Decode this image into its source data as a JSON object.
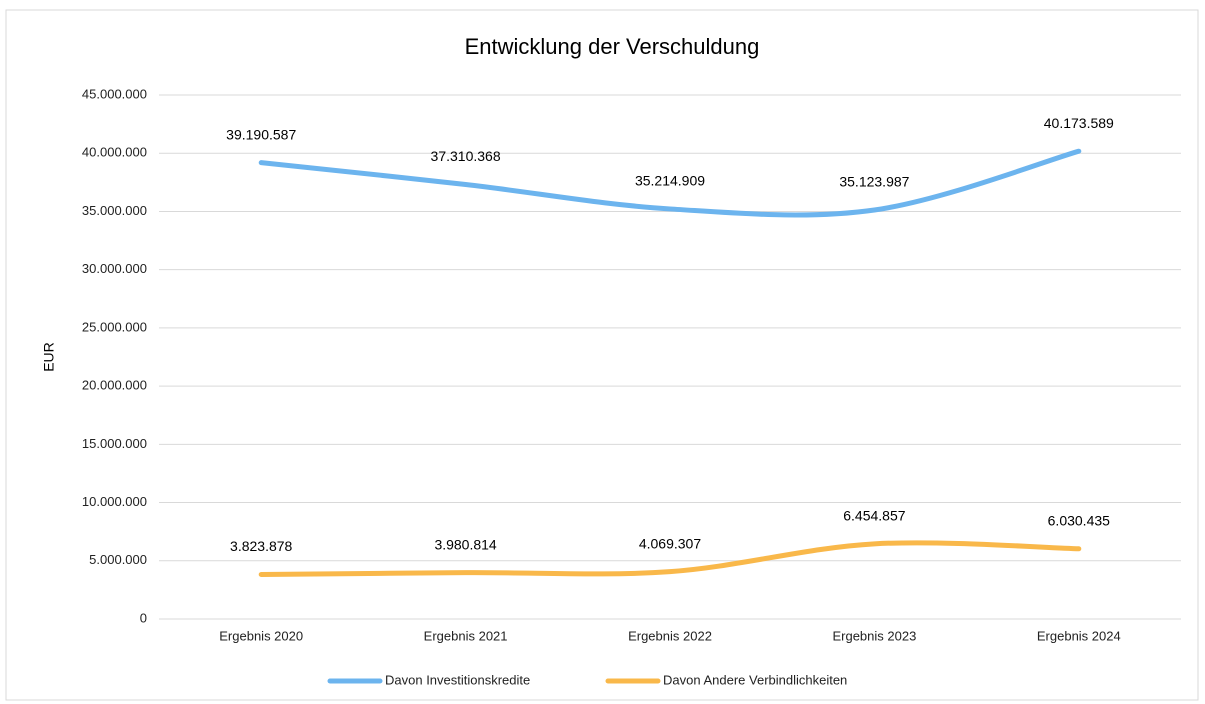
{
  "chart_data": {
    "type": "line",
    "title": "Entwicklung der Verschuldung",
    "y_label": "EUR",
    "categories": [
      "Ergebnis 2020",
      "Ergebnis 2021",
      "Ergebnis 2022",
      "Ergebnis 2023",
      "Ergebnis 2024"
    ],
    "series": [
      {
        "name": "Davon Investitionskredite",
        "color": "#6cb4ee",
        "values": [
          39190587,
          37310368,
          35214909,
          35123987,
          40173589
        ],
        "value_labels": [
          "39.190.587",
          "37.310.368",
          "35.214.909",
          "35.123.987",
          "40.173.589"
        ]
      },
      {
        "name": "Davon Andere Verbindlichkeiten",
        "color": "#f9b84a",
        "values": [
          3823878,
          3980814,
          4069307,
          6454857,
          6030435
        ],
        "value_labels": [
          "3.823.878",
          "3.980.814",
          "4.069.307",
          "6.454.857",
          "6.030.435"
        ]
      }
    ],
    "ylim": [
      0,
      45000000
    ],
    "yticks": [
      0,
      {
        "value": 5000000,
        "label": "5.000.000"
      },
      {
        "value": 10000000,
        "label": "10.000.000"
      },
      {
        "value": 15000000,
        "label": "15.000.000"
      },
      {
        "value": 20000000,
        "label": "20.000.000"
      },
      {
        "value": 25000000,
        "label": "25.000.000"
      },
      {
        "value": 30000000,
        "label": "30.000.000"
      },
      {
        "value": 35000000,
        "label": "35.000.000"
      },
      {
        "value": 40000000,
        "label": "40.000.000"
      },
      {
        "value": 45000000,
        "label": "45.000.000"
      }
    ],
    "grid": true,
    "legend": "bottom"
  }
}
